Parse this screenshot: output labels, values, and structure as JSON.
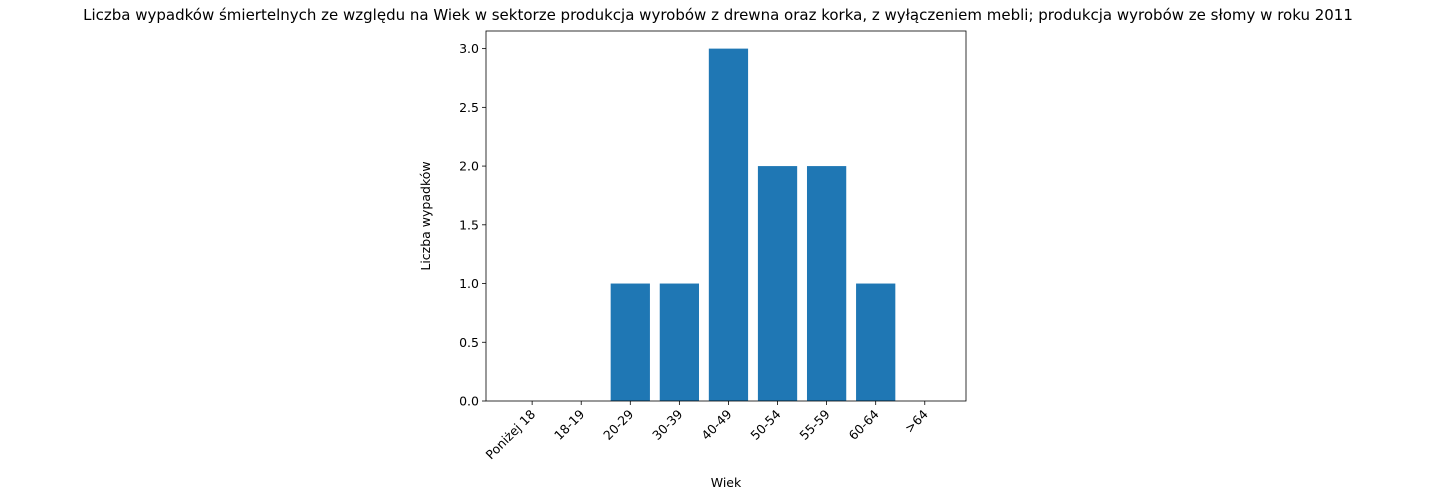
{
  "chart_data": {
    "type": "bar",
    "title": "Liczba wypadków śmiertelnych ze względu na Wiek w sektorze produkcja wyrobów z drewna oraz korka, z wyłączeniem mebli; produkcja wyrobów ze słomy w roku 2011",
    "xlabel": "Wiek",
    "ylabel": "Liczba wypadków",
    "categories": [
      "Poniżej 18",
      "18-19",
      "20-29",
      "30-39",
      "40-49",
      "50-54",
      "55-59",
      "60-64",
      ">64"
    ],
    "values": [
      0,
      0,
      1,
      1,
      3,
      2,
      2,
      1,
      0
    ],
    "ylim": [
      0,
      3.15
    ],
    "yticks": [
      0.0,
      0.5,
      1.0,
      1.5,
      2.0,
      2.5,
      3.0
    ],
    "ytick_labels": [
      "0.0",
      "0.5",
      "1.0",
      "1.5",
      "2.0",
      "2.5",
      "3.0"
    ],
    "grid": false,
    "bar_color": "#1f77b4"
  }
}
